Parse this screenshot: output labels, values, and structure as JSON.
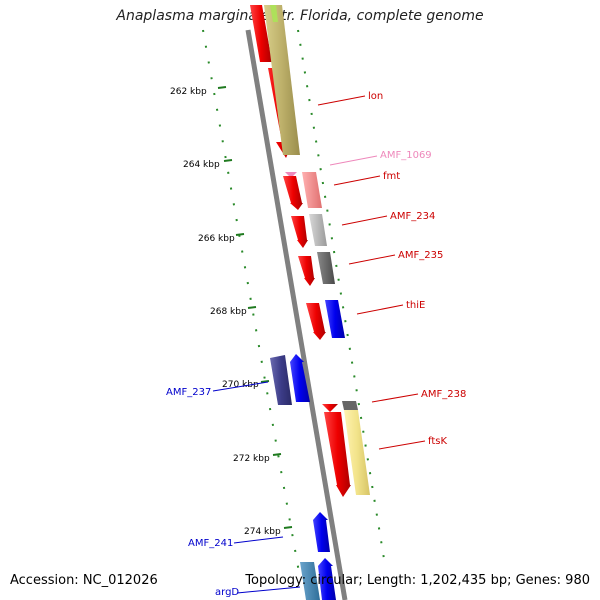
{
  "title": "Anaplasma marginale str. Florida, complete genome",
  "footer": {
    "accession": "Accession: NC_012026",
    "summary": "Topology: circular; Length: 1,202,435 bp; Genes: 980"
  },
  "ticks": [
    "262 kbp",
    "264 kbp",
    "266 kbp",
    "268 kbp",
    "270 kbp",
    "272 kbp",
    "274 kbp"
  ],
  "genes_right": [
    {
      "label": "lon",
      "color": "#cc0000"
    },
    {
      "label": "AMF_1069",
      "color": "#ee88bb"
    },
    {
      "label": "fmt",
      "color": "#cc0000"
    },
    {
      "label": "AMF_234",
      "color": "#cc0000"
    },
    {
      "label": "AMF_235",
      "color": "#cc0000"
    },
    {
      "label": "thiE",
      "color": "#cc0000"
    },
    {
      "label": "AMF_238",
      "color": "#cc0000"
    },
    {
      "label": "ftsK",
      "color": "#cc0000"
    }
  ],
  "genes_left": [
    {
      "label": "AMF_237",
      "color": "#0000cc"
    },
    {
      "label": "AMF_241",
      "color": "#0000cc"
    },
    {
      "label": "argD",
      "color": "#0000cc"
    }
  ]
}
